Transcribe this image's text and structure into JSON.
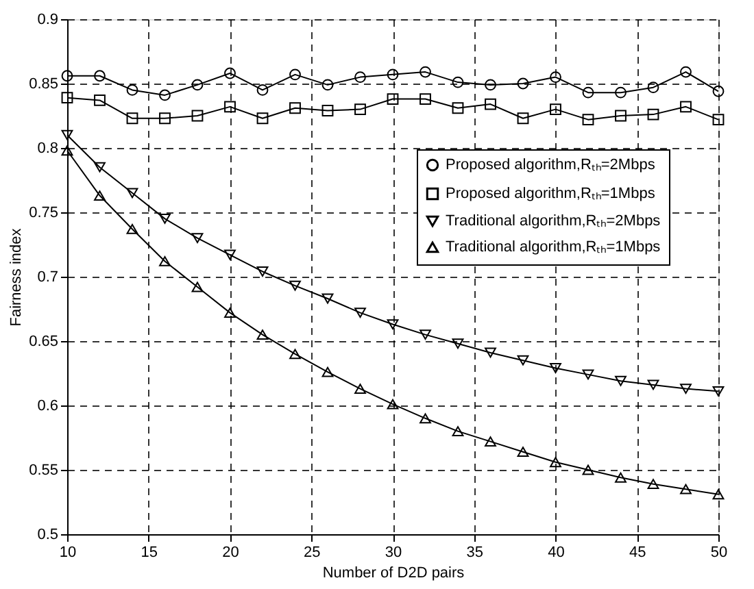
{
  "chart_data": {
    "type": "line",
    "xlabel": "Number of D2D pairs",
    "ylabel": "Fairness index",
    "x": [
      10,
      12,
      14,
      16,
      18,
      20,
      22,
      24,
      26,
      28,
      30,
      32,
      34,
      36,
      38,
      40,
      42,
      44,
      46,
      48,
      50
    ],
    "xlim": [
      10,
      50
    ],
    "xticks": [
      10,
      15,
      20,
      25,
      30,
      35,
      40,
      45,
      50
    ],
    "ylim": [
      0.5,
      0.9
    ],
    "yticks": [
      0.5,
      0.55,
      0.6,
      0.65,
      0.7,
      0.75,
      0.8,
      0.85,
      0.9
    ],
    "grid": true,
    "legend": "right",
    "line_style": "solid",
    "series": [
      {
        "name": "Proposed algorithm,Rₜₕ=2Mbps",
        "color": "#000000",
        "marker": "circle",
        "values": [
          0.856,
          0.856,
          0.845,
          0.841,
          0.849,
          0.858,
          0.845,
          0.857,
          0.849,
          0.855,
          0.857,
          0.859,
          0.851,
          0.849,
          0.85,
          0.855,
          0.843,
          0.843,
          0.847,
          0.859,
          0.844
        ]
      },
      {
        "name": "Proposed algorithm,Rₜₕ=1Mbps",
        "color": "#000000",
        "marker": "square",
        "values": [
          0.839,
          0.837,
          0.823,
          0.823,
          0.825,
          0.832,
          0.823,
          0.831,
          0.829,
          0.83,
          0.838,
          0.838,
          0.831,
          0.834,
          0.823,
          0.83,
          0.822,
          0.825,
          0.826,
          0.832,
          0.822
        ]
      },
      {
        "name": "Traditional algorithm,Rₜₕ=2Mbps",
        "color": "#000000",
        "marker": "triangle-down",
        "values": [
          0.81,
          0.785,
          0.765,
          0.745,
          0.73,
          0.717,
          0.704,
          0.693,
          0.683,
          0.672,
          0.663,
          0.655,
          0.648,
          0.641,
          0.635,
          0.629,
          0.624,
          0.619,
          0.616,
          0.613,
          0.611
        ]
      },
      {
        "name": "Traditional algorithm,Rₜₕ=1Mbps",
        "color": "#000000",
        "marker": "triangle-up",
        "values": [
          0.798,
          0.763,
          0.737,
          0.712,
          0.692,
          0.672,
          0.655,
          0.64,
          0.626,
          0.613,
          0.601,
          0.59,
          0.58,
          0.572,
          0.564,
          0.556,
          0.55,
          0.544,
          0.539,
          0.535,
          0.531
        ]
      }
    ]
  }
}
